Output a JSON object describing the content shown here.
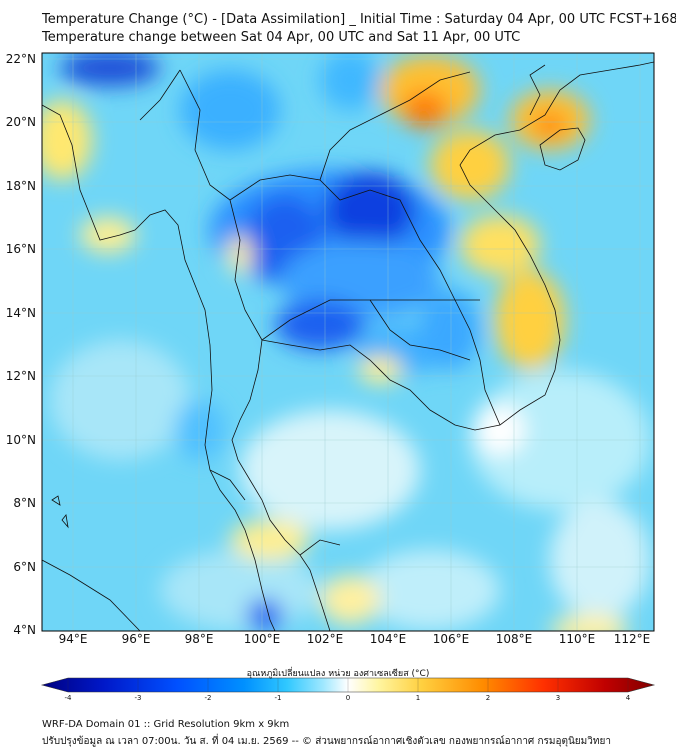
{
  "title_line1": "Temperature Change (°C) - [Data Assimilation] _ Initial Time : Saturday 04 Apr, 00 UTC FCST+168",
  "title_line2": "Temperature change between Sat 04 Apr, 00 UTC and Sat 11 Apr, 00 UTC",
  "lat_labels": [
    "22°N",
    "20°N",
    "18°N",
    "16°N",
    "14°N",
    "12°N",
    "10°N",
    "8°N",
    "6°N",
    "4°N"
  ],
  "lon_labels": [
    "94°E",
    "96°E",
    "98°E",
    "100°E",
    "102°E",
    "104°E",
    "106°E",
    "108°E",
    "110°E",
    "112°E"
  ],
  "colorbar": {
    "title": "อุณหภูมิเปลี่ยนแปลง หน่วย องศาเซลเซียส (°C)",
    "ticks": [
      "-4",
      "-3",
      "-2",
      "-1",
      "0",
      "1",
      "2",
      "3",
      "4"
    ],
    "colors": [
      "#000080",
      "#0018c8",
      "#0050ff",
      "#0090ff",
      "#30c8ff",
      "#a0e8ff",
      "#ffffff",
      "#fff5a0",
      "#ffd040",
      "#ff8c00",
      "#ff3000",
      "#c00000",
      "#800000"
    ]
  },
  "footer_line1": "WRF-DA Domain 01 :: Grid Resolution 9km x 9km",
  "footer_line2": "ปรับปรุงข้อมูล ณ เวลา 07:00น. วัน ส. ที่ 04 เม.ย. 2569 -- © ส่วนพยากรณ์อากาศเชิงตัวเลข กองพยากรณ์อากาศ กรมอุตุนิยมวิทยา"
}
